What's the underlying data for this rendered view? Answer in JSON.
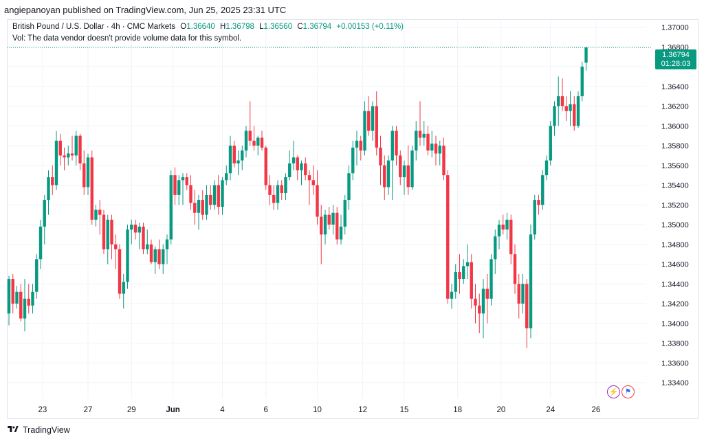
{
  "header": {
    "published_text": "angiepanoyan published on TradingView.com, Jun 25, 2025 23:31 UTC"
  },
  "legend": {
    "symbol": "British Pound / U.S. Dollar · 4h · CMC Markets",
    "open_label": "O",
    "open": "1.36640",
    "high_label": "H",
    "high": "1.36798",
    "low_label": "L",
    "low": "1.36560",
    "close_label": "C",
    "close": "1.36794",
    "change": "+0.00153 (+0.11%)",
    "volume_note": "Vol: The data vendor doesn't provide volume data for this symbol."
  },
  "last_price": {
    "price": "1.36794",
    "countdown": "01:28:03"
  },
  "footer": {
    "brand": "TradingView"
  },
  "colors": {
    "up": "#089981",
    "down": "#f23645",
    "grid": "#f0f3fa",
    "axis_text": "#131722"
  },
  "icons": [
    "flash-icon",
    "us-flag-icon",
    "tradingview-logo-icon"
  ],
  "chart_data": {
    "type": "candlestick",
    "title": "British Pound / U.S. Dollar · 4h · CMC Markets",
    "ylim": [
      1.3324,
      1.3708
    ],
    "y_ticks": [
      "1.37000",
      "1.36800",
      "1.36600",
      "1.36400",
      "1.36200",
      "1.36000",
      "1.35800",
      "1.35600",
      "1.35400",
      "1.35200",
      "1.35000",
      "1.34800",
      "1.34600",
      "1.34400",
      "1.34200",
      "1.34000",
      "1.33800",
      "1.33600",
      "1.33400"
    ],
    "x_ticks": [
      {
        "label": "23",
        "index": 8.5
      },
      {
        "label": "27",
        "index": 20
      },
      {
        "label": "29",
        "index": 31
      },
      {
        "label": "Jun",
        "index": 41.5
      },
      {
        "label": "4",
        "index": 54
      },
      {
        "label": "6",
        "index": 65
      },
      {
        "label": "10",
        "index": 78
      },
      {
        "label": "12",
        "index": 89.5
      },
      {
        "label": "15",
        "index": 100
      },
      {
        "label": "18",
        "index": 113.5
      },
      {
        "label": "20",
        "index": 124.5
      },
      {
        "label": "24",
        "index": 137
      },
      {
        "label": "26",
        "index": 148.5
      }
    ],
    "grid": true,
    "candles": [
      [
        1.341,
        1.3448,
        1.3398,
        1.3445
      ],
      [
        1.3445,
        1.345,
        1.341,
        1.342
      ],
      [
        1.342,
        1.3438,
        1.3415,
        1.3432
      ],
      [
        1.3432,
        1.344,
        1.3402,
        1.3405
      ],
      [
        1.3405,
        1.3445,
        1.3392,
        1.3425
      ],
      [
        1.3425,
        1.344,
        1.341,
        1.3418
      ],
      [
        1.3418,
        1.344,
        1.341,
        1.3432
      ],
      [
        1.3432,
        1.347,
        1.3425,
        1.3465
      ],
      [
        1.3465,
        1.3505,
        1.3455,
        1.3498
      ],
      [
        1.3498,
        1.353,
        1.348,
        1.3525
      ],
      [
        1.3525,
        1.3555,
        1.351,
        1.3548
      ],
      [
        1.3548,
        1.356,
        1.353,
        1.354
      ],
      [
        1.354,
        1.3595,
        1.3535,
        1.3585
      ],
      [
        1.3585,
        1.3592,
        1.356,
        1.357
      ],
      [
        1.357,
        1.3578,
        1.3555,
        1.3568
      ],
      [
        1.3568,
        1.358,
        1.356,
        1.3572
      ],
      [
        1.3572,
        1.359,
        1.3565,
        1.357
      ],
      [
        1.357,
        1.3595,
        1.356,
        1.359
      ],
      [
        1.359,
        1.3592,
        1.3555,
        1.3562
      ],
      [
        1.3562,
        1.3575,
        1.353,
        1.3538
      ],
      [
        1.3538,
        1.3572,
        1.353,
        1.3568
      ],
      [
        1.3568,
        1.3575,
        1.35,
        1.3505
      ],
      [
        1.3505,
        1.352,
        1.3498,
        1.3515
      ],
      [
        1.3515,
        1.3525,
        1.349,
        1.351
      ],
      [
        1.351,
        1.3515,
        1.347,
        1.3475
      ],
      [
        1.3475,
        1.351,
        1.346,
        1.3505
      ],
      [
        1.3505,
        1.351,
        1.3465,
        1.348
      ],
      [
        1.348,
        1.349,
        1.3455,
        1.3475
      ],
      [
        1.3475,
        1.348,
        1.3425,
        1.343
      ],
      [
        1.343,
        1.345,
        1.3415,
        1.3442
      ],
      [
        1.3442,
        1.35,
        1.3435,
        1.3495
      ],
      [
        1.3495,
        1.3505,
        1.348,
        1.35
      ],
      [
        1.35,
        1.3505,
        1.3485,
        1.3492
      ],
      [
        1.3492,
        1.3502,
        1.3475,
        1.3498
      ],
      [
        1.3498,
        1.3502,
        1.347,
        1.3475
      ],
      [
        1.3475,
        1.3495,
        1.347,
        1.348
      ],
      [
        1.348,
        1.3485,
        1.346,
        1.3462
      ],
      [
        1.3462,
        1.3478,
        1.345,
        1.3475
      ],
      [
        1.3475,
        1.3485,
        1.3455,
        1.346
      ],
      [
        1.346,
        1.348,
        1.345,
        1.3475
      ],
      [
        1.3475,
        1.349,
        1.346,
        1.3485
      ],
      [
        1.3485,
        1.3555,
        1.348,
        1.355
      ],
      [
        1.355,
        1.3558,
        1.352,
        1.353
      ],
      [
        1.353,
        1.355,
        1.352,
        1.3545
      ],
      [
        1.3545,
        1.3552,
        1.352,
        1.3548
      ],
      [
        1.3548,
        1.3552,
        1.3535,
        1.354
      ],
      [
        1.354,
        1.355,
        1.3515,
        1.3522
      ],
      [
        1.3522,
        1.3535,
        1.35,
        1.3512
      ],
      [
        1.3512,
        1.353,
        1.3495,
        1.3525
      ],
      [
        1.3525,
        1.3535,
        1.3505,
        1.351
      ],
      [
        1.351,
        1.354,
        1.3505,
        1.353
      ],
      [
        1.353,
        1.354,
        1.3515,
        1.352
      ],
      [
        1.352,
        1.3545,
        1.3515,
        1.354
      ],
      [
        1.354,
        1.355,
        1.351,
        1.3518
      ],
      [
        1.3518,
        1.3548,
        1.351,
        1.3545
      ],
      [
        1.3545,
        1.356,
        1.354,
        1.3552
      ],
      [
        1.3552,
        1.359,
        1.3545,
        1.358
      ],
      [
        1.358,
        1.3585,
        1.3558,
        1.3562
      ],
      [
        1.3562,
        1.3575,
        1.355,
        1.3565
      ],
      [
        1.3565,
        1.358,
        1.3555,
        1.3575
      ],
      [
        1.3575,
        1.36,
        1.3568,
        1.3595
      ],
      [
        1.3595,
        1.3625,
        1.358,
        1.3585
      ],
      [
        1.3585,
        1.36,
        1.3575,
        1.358
      ],
      [
        1.358,
        1.359,
        1.357,
        1.3588
      ],
      [
        1.3588,
        1.3595,
        1.3575,
        1.3578
      ],
      [
        1.3578,
        1.358,
        1.3535,
        1.354
      ],
      [
        1.354,
        1.355,
        1.352,
        1.353
      ],
      [
        1.353,
        1.354,
        1.3515,
        1.3522
      ],
      [
        1.3522,
        1.3545,
        1.3515,
        1.354
      ],
      [
        1.354,
        1.3545,
        1.3525,
        1.3532
      ],
      [
        1.3532,
        1.3552,
        1.3525,
        1.3548
      ],
      [
        1.3548,
        1.3575,
        1.3545,
        1.3562
      ],
      [
        1.3562,
        1.3585,
        1.3555,
        1.3568
      ],
      [
        1.3568,
        1.357,
        1.3545,
        1.3555
      ],
      [
        1.3555,
        1.3565,
        1.354,
        1.3562
      ],
      [
        1.3562,
        1.3568,
        1.3545,
        1.355
      ],
      [
        1.355,
        1.3555,
        1.352,
        1.3545
      ],
      [
        1.3545,
        1.356,
        1.353,
        1.354
      ],
      [
        1.354,
        1.3555,
        1.35,
        1.3508
      ],
      [
        1.3508,
        1.352,
        1.346,
        1.349
      ],
      [
        1.349,
        1.3515,
        1.348,
        1.351
      ],
      [
        1.351,
        1.3518,
        1.3495,
        1.35
      ],
      [
        1.35,
        1.352,
        1.349,
        1.3512
      ],
      [
        1.3512,
        1.3518,
        1.348,
        1.3485
      ],
      [
        1.3485,
        1.351,
        1.348,
        1.3498
      ],
      [
        1.3498,
        1.353,
        1.349,
        1.3525
      ],
      [
        1.3525,
        1.356,
        1.3515,
        1.3552
      ],
      [
        1.3552,
        1.3585,
        1.3545,
        1.3578
      ],
      [
        1.3578,
        1.3595,
        1.356,
        1.3585
      ],
      [
        1.3585,
        1.359,
        1.3565,
        1.3575
      ],
      [
        1.3575,
        1.3625,
        1.357,
        1.3615
      ],
      [
        1.3615,
        1.363,
        1.359,
        1.3595
      ],
      [
        1.3595,
        1.3625,
        1.3585,
        1.362
      ],
      [
        1.362,
        1.3635,
        1.357,
        1.3578
      ],
      [
        1.3578,
        1.359,
        1.354,
        1.356
      ],
      [
        1.356,
        1.357,
        1.3525,
        1.3538
      ],
      [
        1.3538,
        1.357,
        1.353,
        1.3565
      ],
      [
        1.3565,
        1.36,
        1.3525,
        1.3595
      ],
      [
        1.3595,
        1.36,
        1.356,
        1.357
      ],
      [
        1.357,
        1.3575,
        1.354,
        1.3548
      ],
      [
        1.3548,
        1.3565,
        1.353,
        1.356
      ],
      [
        1.356,
        1.358,
        1.353,
        1.3538
      ],
      [
        1.3538,
        1.358,
        1.3535,
        1.3575
      ],
      [
        1.3575,
        1.3605,
        1.3565,
        1.3595
      ],
      [
        1.3595,
        1.3625,
        1.358,
        1.3588
      ],
      [
        1.3588,
        1.3605,
        1.358,
        1.3592
      ],
      [
        1.3592,
        1.36,
        1.357,
        1.3575
      ],
      [
        1.3575,
        1.3595,
        1.3568,
        1.3582
      ],
      [
        1.3582,
        1.359,
        1.356,
        1.3572
      ],
      [
        1.3572,
        1.3585,
        1.356,
        1.358
      ],
      [
        1.358,
        1.3588,
        1.3545,
        1.355
      ],
      [
        1.355,
        1.3555,
        1.342,
        1.3425
      ],
      [
        1.3425,
        1.344,
        1.3415,
        1.3432
      ],
      [
        1.3432,
        1.346,
        1.3425,
        1.3452
      ],
      [
        1.3452,
        1.347,
        1.343,
        1.3445
      ],
      [
        1.3445,
        1.3465,
        1.344,
        1.3458
      ],
      [
        1.3458,
        1.348,
        1.3445,
        1.3462
      ],
      [
        1.3462,
        1.347,
        1.3415,
        1.3425
      ],
      [
        1.3425,
        1.344,
        1.34,
        1.3418
      ],
      [
        1.3418,
        1.343,
        1.339,
        1.341
      ],
      [
        1.341,
        1.3445,
        1.3385,
        1.3435
      ],
      [
        1.3435,
        1.345,
        1.34,
        1.3425
      ],
      [
        1.3425,
        1.347,
        1.3418,
        1.3465
      ],
      [
        1.3465,
        1.3495,
        1.345,
        1.3488
      ],
      [
        1.3488,
        1.3505,
        1.3475,
        1.35
      ],
      [
        1.35,
        1.351,
        1.349,
        1.3495
      ],
      [
        1.3495,
        1.3512,
        1.3485,
        1.3505
      ],
      [
        1.3505,
        1.351,
        1.346,
        1.347
      ],
      [
        1.347,
        1.348,
        1.343,
        1.344
      ],
      [
        1.344,
        1.345,
        1.3405,
        1.342
      ],
      [
        1.342,
        1.345,
        1.341,
        1.344
      ],
      [
        1.344,
        1.3445,
        1.3375,
        1.3395
      ],
      [
        1.3395,
        1.35,
        1.3385,
        1.349
      ],
      [
        1.349,
        1.353,
        1.3485,
        1.3525
      ],
      [
        1.3525,
        1.353,
        1.351,
        1.352
      ],
      [
        1.352,
        1.3555,
        1.3515,
        1.355
      ],
      [
        1.355,
        1.357,
        1.3545,
        1.3565
      ],
      [
        1.3565,
        1.3605,
        1.356,
        1.36
      ],
      [
        1.36,
        1.3625,
        1.359,
        1.362
      ],
      [
        1.362,
        1.365,
        1.36,
        1.363
      ],
      [
        1.363,
        1.3648,
        1.3615,
        1.362
      ],
      [
        1.362,
        1.363,
        1.3605,
        1.3615
      ],
      [
        1.3615,
        1.3635,
        1.36,
        1.3622
      ],
      [
        1.3622,
        1.363,
        1.3595,
        1.36
      ],
      [
        1.36,
        1.3635,
        1.3598,
        1.363
      ],
      [
        1.363,
        1.3665,
        1.3625,
        1.366
      ],
      [
        1.3664,
        1.36798,
        1.3656,
        1.36794
      ]
    ]
  }
}
